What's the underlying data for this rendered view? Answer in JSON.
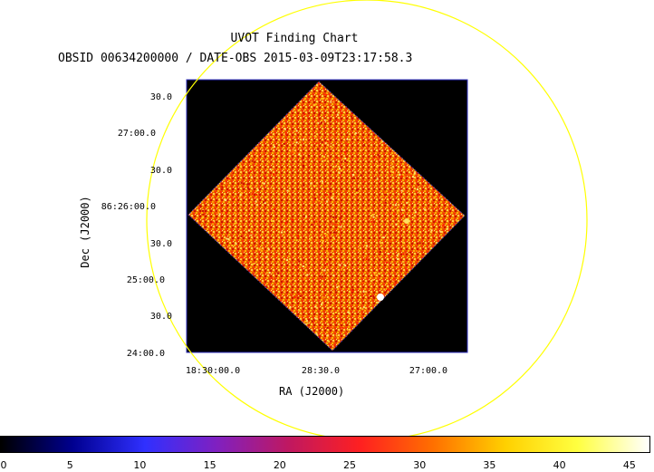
{
  "title_line_1": "UVOT Finding Chart",
  "title_line_2": "OBSID 00634200000 / DATE-OBS 2015-03-09T23:17:58.3",
  "axes": {
    "xlabel": "RA (J2000)",
    "ylabel": "Dec (J2000)",
    "x_ticks": [
      "18:30:00.0",
      "28:30.0",
      "27:00.0"
    ],
    "y_ticks": [
      "30.0",
      "27:00.0",
      "30.0",
      "86:26:00.0",
      "30.0",
      "25:00.0",
      "30.0",
      "24:00.0"
    ]
  },
  "image": {
    "background": "#000000",
    "frame_color": "#3030c0",
    "region_circle_color": "#ffff00",
    "colormap": "heat"
  },
  "colorbar": {
    "ticks": [
      "0",
      "5",
      "10",
      "15",
      "20",
      "25",
      "30",
      "35",
      "40",
      "45"
    ],
    "range": [
      0,
      46.5
    ],
    "stops": [
      "#000000",
      "#000090",
      "#3030ff",
      "#8020c0",
      "#c01860",
      "#ff2020",
      "#ff7000",
      "#ffd000",
      "#ffff40",
      "#ffffff"
    ]
  }
}
